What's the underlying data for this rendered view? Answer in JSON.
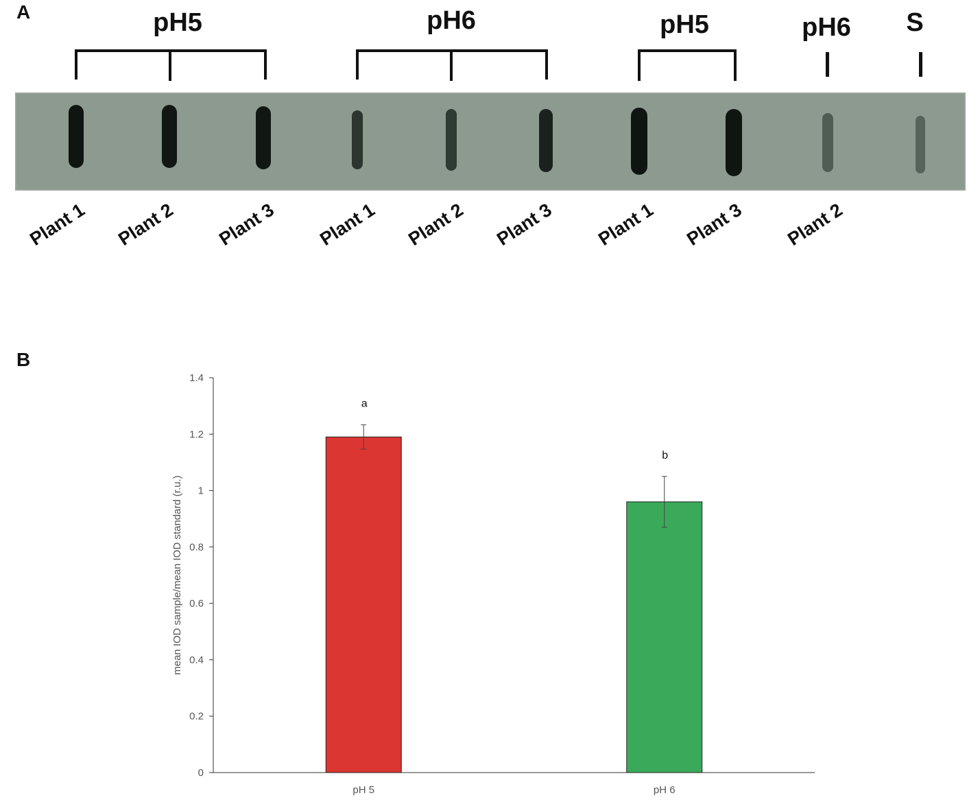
{
  "panel_a": {
    "letter": "A",
    "groups": [
      {
        "label": "pH5",
        "lanes": 3
      },
      {
        "label": "pH6",
        "lanes": 3
      },
      {
        "label": "pH5",
        "lanes": 2
      },
      {
        "label": "pH6",
        "lanes": 1
      },
      {
        "label": "S",
        "lanes": 1
      }
    ],
    "lane_labels": [
      "Plant 1",
      "Plant 2",
      "Plant 3",
      "Plant 1",
      "Plant 2",
      "Plant 3",
      "Plant 1",
      "Plant 3",
      "Plant 2"
    ],
    "band_colors": [
      "#0f1511",
      "#111713",
      "#111712",
      "#2b3630",
      "#2e3a33",
      "#1a221d",
      "#0f1511",
      "#0f1511",
      "#4f5d55",
      "#56645b"
    ]
  },
  "panel_b": {
    "letter": "B"
  },
  "chart_data": {
    "type": "bar",
    "categories": [
      "pH 5",
      "pH 6"
    ],
    "values": [
      1.19,
      0.96
    ],
    "errors": [
      0.043,
      0.09
    ],
    "significance_letters": [
      "a",
      "b"
    ],
    "colors": [
      "#db3632",
      "#3aaa5a"
    ],
    "title": "",
    "xlabel": "",
    "ylabel": "mean IOD sample/mean IOD standard (r.u.)",
    "ylim": [
      0,
      1.4
    ],
    "yticks": [
      "0",
      "0.2",
      "0.4",
      "0.6",
      "0.8",
      "1",
      "1.2",
      "1.4"
    ],
    "grid": false
  }
}
